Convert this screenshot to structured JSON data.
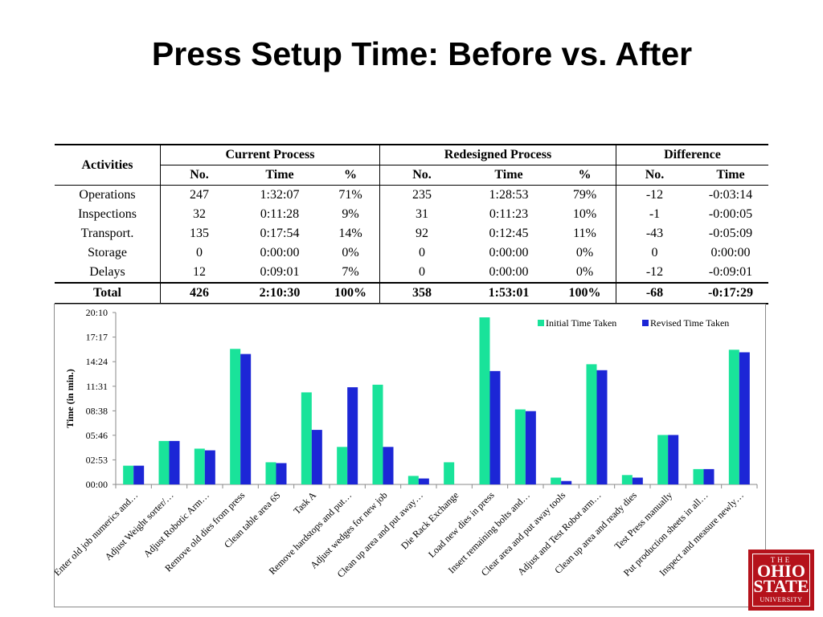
{
  "slide": {
    "title": "Press Setup Time: Before vs. After"
  },
  "table": {
    "activities_header": "Activities",
    "groups": [
      "Current Process",
      "Redesigned Process",
      "Difference"
    ],
    "subheaders": [
      "No.",
      "Time",
      "%",
      "No.",
      "Time",
      "%",
      "No.",
      "Time"
    ],
    "rows": [
      [
        "Operations",
        "247",
        "1:32:07",
        "71%",
        "235",
        "1:28:53",
        "79%",
        "-12",
        "-0:03:14"
      ],
      [
        "Inspections",
        "32",
        "0:11:28",
        "9%",
        "31",
        "0:11:23",
        "10%",
        "-1",
        "-0:00:05"
      ],
      [
        "Transport.",
        "135",
        "0:17:54",
        "14%",
        "92",
        "0:12:45",
        "11%",
        "-43",
        "-0:05:09"
      ],
      [
        "Storage",
        "0",
        "0:00:00",
        "0%",
        "0",
        "0:00:00",
        "0%",
        "0",
        "0:00:00"
      ],
      [
        "Delays",
        "12",
        "0:09:01",
        "7%",
        "0",
        "0:00:00",
        "0%",
        "-12",
        "-0:09:01"
      ]
    ],
    "total": [
      "Total",
      "426",
      "2:10:30",
      "100%",
      "358",
      "1:53:01",
      "100%",
      "-68",
      "-0:17:29"
    ]
  },
  "chart_data": {
    "type": "bar",
    "title": "",
    "xlabel": "",
    "ylabel": "Time (in min.)",
    "ylim": [
      0,
      20.167
    ],
    "y_ticks": [
      "00:00",
      "02:53",
      "05:46",
      "08:38",
      "11:31",
      "14:24",
      "17:17",
      "20:10"
    ],
    "y_tick_values": [
      0,
      2.883,
      5.767,
      8.633,
      11.517,
      14.4,
      17.283,
      20.167
    ],
    "grid": false,
    "legend_position": "top-right",
    "categories": [
      "Enter old job numerics and…",
      "Adjust Weight sorter/…",
      "Adjust Robotic Arm…",
      "Remove old dies from press",
      "Clean table area 6S",
      "Task A",
      "Remove hardstops and put…",
      "Adjust wedges for new job",
      "Clean up area and put away…",
      "Die Rack Exchange",
      "Load new dies in press",
      "Insert remaining bolts and…",
      "Clear area and put away tools",
      "Adjust and Test Robot arm…",
      "Clean up area and ready dies",
      "Test Press manually",
      "Put production sheets in all…",
      "Inspect and measure newly…"
    ],
    "series": [
      {
        "name": "Initial Time Taken",
        "color": "#19e39a",
        "values": [
          2.2,
          5.1,
          4.2,
          15.9,
          2.6,
          10.8,
          4.4,
          11.7,
          1.0,
          2.6,
          19.6,
          8.8,
          0.8,
          14.1,
          1.1,
          5.8,
          1.8,
          15.8
        ]
      },
      {
        "name": "Revised Time Taken",
        "color": "#1c26d6",
        "values": [
          2.2,
          5.1,
          4.0,
          15.3,
          2.5,
          6.4,
          11.4,
          4.4,
          0.7,
          0.0,
          13.3,
          8.6,
          0.4,
          13.4,
          0.8,
          5.8,
          1.8,
          15.5
        ]
      }
    ]
  },
  "logo": {
    "the": "THE",
    "line1": "OHIO",
    "line2": "STATE",
    "line3": "UNIVERSITY"
  }
}
